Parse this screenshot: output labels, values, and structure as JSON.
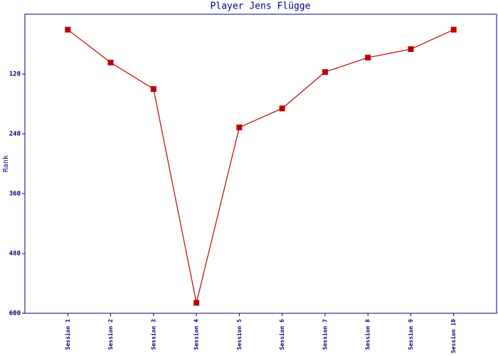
{
  "chart_data": {
    "type": "line",
    "title": "Player Jens Flügge",
    "y_label": "Rank",
    "categories": [
      "Session 1",
      "Session 2",
      "Session 3",
      "Session 4",
      "Session 5",
      "Session 6",
      "Session 7",
      "Session 8",
      "Session 9",
      "Session 10"
    ],
    "series": [
      {
        "name": "Rank",
        "color": "#c00000",
        "values": [
          31,
          97,
          150,
          579,
          227,
          189,
          116,
          87,
          70,
          31
        ]
      }
    ],
    "ylim": [
      0,
      600
    ],
    "y_inverted": true,
    "yticks": [
      120,
      240,
      360,
      480,
      600
    ],
    "axis_color": "#000080"
  }
}
